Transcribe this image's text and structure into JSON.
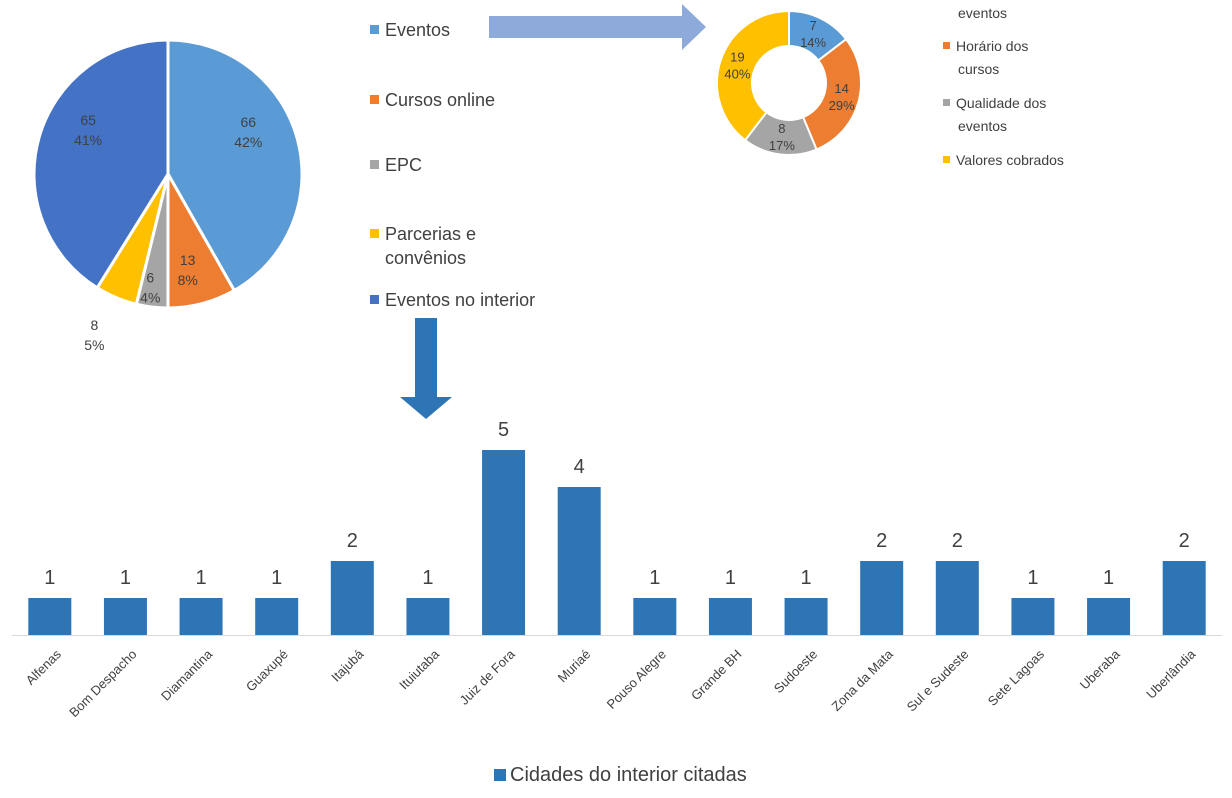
{
  "chart_data": [
    {
      "type": "pie",
      "series": [
        {
          "name": "Eventos",
          "value": 66,
          "percent": "42%",
          "color": "#5B9BD5"
        },
        {
          "name": "Cursos online",
          "value": 13,
          "percent": "8%",
          "color": "#ED7D31"
        },
        {
          "name": "EPC",
          "value": 6,
          "percent": "4%",
          "color": "#A5A5A5"
        },
        {
          "name": "Parcerias e convênios",
          "value": 8,
          "percent": "5%",
          "color": "#FFC000"
        },
        {
          "name": "Eventos no interior",
          "value": 65,
          "percent": "41%",
          "color": "#4472C4"
        }
      ],
      "legend": "right"
    },
    {
      "type": "donut",
      "series": [
        {
          "name": "...eventos",
          "value": 7,
          "percent": "14%",
          "color": "#5B9BD5"
        },
        {
          "name": "Horário dos cursos",
          "value": 14,
          "percent": "29%",
          "color": "#ED7D31"
        },
        {
          "name": "Qualidade dos eventos",
          "value": 8,
          "percent": "17%",
          "color": "#A5A5A5"
        },
        {
          "name": "Valores cobrados",
          "value": 19,
          "percent": "40%",
          "color": "#FFC000"
        }
      ],
      "legend": "right"
    },
    {
      "type": "bar",
      "categories": [
        "Alfenas",
        "Bom Despacho",
        "Diamantina",
        "Guaxupé",
        "Itajubá",
        "Ituiutaba",
        "Juiz de Fora",
        "Muriaé",
        "Pouso Alegre",
        "Grande BH",
        "Sudoeste",
        "Zona da Mata",
        "Sul e Sudeste",
        "Sete Lagoas",
        "Uberaba",
        "Uberlândia"
      ],
      "series": [
        {
          "name": "Cidades do interior citadas",
          "values": [
            1,
            1,
            1,
            1,
            2,
            1,
            5,
            4,
            1,
            1,
            1,
            2,
            2,
            1,
            1,
            2
          ],
          "color": "#2E75B6"
        }
      ],
      "ylim": [
        0,
        5
      ],
      "grid": false,
      "legend": "bottom"
    }
  ],
  "legend_labels": {
    "pie": [
      "Eventos",
      "Cursos online",
      "EPC",
      "Parcerias e",
      "convênios",
      "Eventos no interior"
    ],
    "donut": [
      "eventos",
      "Horário dos",
      "cursos",
      "Qualidade dos",
      "eventos",
      "Valores cobrados"
    ]
  },
  "arrow_color_light": "#8EAADB",
  "arrow_color_dark": "#2E75B6"
}
